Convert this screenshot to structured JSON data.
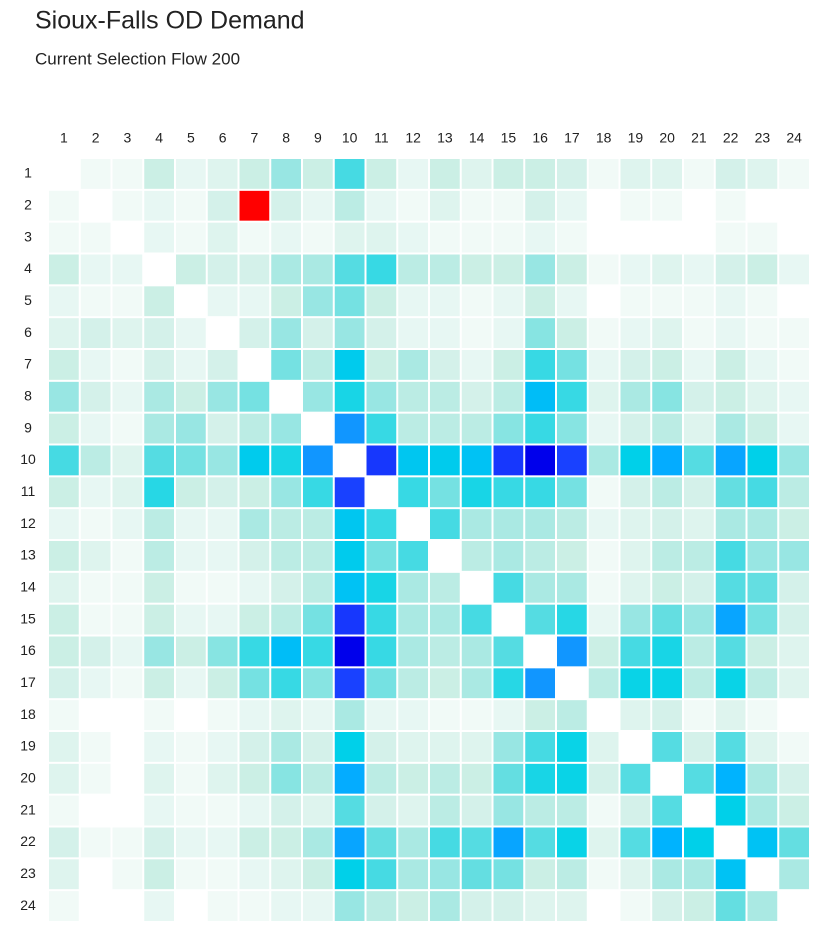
{
  "chart_data": {
    "type": "heatmap",
    "title": "Sioux-Falls OD Demand",
    "subtitle": "Current Selection Flow 200",
    "categories": [
      "1",
      "2",
      "3",
      "4",
      "5",
      "6",
      "7",
      "8",
      "9",
      "10",
      "11",
      "12",
      "13",
      "14",
      "15",
      "16",
      "17",
      "18",
      "19",
      "20",
      "21",
      "22",
      "23",
      "24"
    ],
    "selected_cell": {
      "row": "2",
      "column": "7"
    },
    "selected_color": "#ff0000",
    "values": [
      [
        0,
        100,
        100,
        500,
        200,
        300,
        500,
        800,
        500,
        1300,
        500,
        200,
        500,
        300,
        500,
        500,
        400,
        100,
        300,
        300,
        100,
        400,
        300,
        100
      ],
      [
        100,
        0,
        100,
        200,
        100,
        400,
        200,
        400,
        200,
        600,
        200,
        100,
        300,
        100,
        100,
        400,
        200,
        0,
        100,
        100,
        0,
        100,
        0,
        0
      ],
      [
        100,
        100,
        0,
        200,
        100,
        300,
        100,
        200,
        100,
        300,
        300,
        200,
        100,
        100,
        100,
        200,
        100,
        0,
        0,
        0,
        0,
        100,
        100,
        0
      ],
      [
        500,
        200,
        200,
        0,
        500,
        400,
        400,
        700,
        700,
        1200,
        1400,
        600,
        600,
        500,
        500,
        800,
        500,
        100,
        200,
        300,
        200,
        400,
        500,
        200
      ],
      [
        200,
        100,
        100,
        500,
        0,
        200,
        200,
        500,
        800,
        1000,
        500,
        200,
        200,
        100,
        200,
        500,
        200,
        0,
        100,
        100,
        100,
        200,
        100,
        0
      ],
      [
        300,
        400,
        300,
        400,
        200,
        0,
        400,
        800,
        400,
        800,
        400,
        200,
        200,
        100,
        200,
        900,
        500,
        100,
        200,
        300,
        100,
        200,
        100,
        100
      ],
      [
        500,
        200,
        100,
        400,
        200,
        400,
        0,
        1000,
        600,
        1900,
        500,
        700,
        400,
        200,
        500,
        1400,
        1000,
        200,
        400,
        500,
        200,
        500,
        200,
        100
      ],
      [
        800,
        400,
        200,
        700,
        500,
        800,
        1000,
        0,
        800,
        1600,
        800,
        600,
        600,
        400,
        600,
        2200,
        1400,
        300,
        700,
        900,
        400,
        500,
        300,
        200
      ],
      [
        500,
        200,
        100,
        700,
        800,
        400,
        600,
        800,
        0,
        2800,
        1400,
        600,
        600,
        600,
        900,
        1400,
        900,
        200,
        400,
        600,
        300,
        700,
        500,
        200
      ],
      [
        1300,
        600,
        300,
        1200,
        1000,
        800,
        1900,
        1600,
        2800,
        0,
        4000,
        2000,
        1900,
        2100,
        4000,
        4400,
        3900,
        700,
        1800,
        2500,
        1200,
        2600,
        1800,
        800
      ],
      [
        500,
        200,
        300,
        1500,
        500,
        400,
        500,
        800,
        1400,
        3900,
        0,
        1400,
        1000,
        1600,
        1400,
        1400,
        1000,
        100,
        400,
        600,
        400,
        1100,
        1300,
        600
      ],
      [
        200,
        100,
        200,
        600,
        200,
        200,
        700,
        600,
        600,
        2000,
        1400,
        0,
        1300,
        700,
        700,
        700,
        600,
        200,
        300,
        400,
        300,
        700,
        700,
        500
      ],
      [
        500,
        300,
        100,
        600,
        200,
        200,
        400,
        600,
        600,
        1900,
        1000,
        1300,
        0,
        600,
        700,
        600,
        500,
        100,
        300,
        600,
        600,
        1300,
        800,
        800
      ],
      [
        300,
        100,
        100,
        500,
        100,
        100,
        200,
        400,
        600,
        2100,
        1600,
        700,
        600,
        0,
        1300,
        700,
        700,
        100,
        300,
        500,
        400,
        1200,
        1100,
        400
      ],
      [
        500,
        100,
        100,
        500,
        200,
        200,
        500,
        600,
        1000,
        4000,
        1400,
        700,
        700,
        1300,
        0,
        1200,
        1500,
        200,
        800,
        1100,
        800,
        2600,
        1000,
        400
      ],
      [
        500,
        400,
        200,
        800,
        500,
        900,
        1400,
        2200,
        1400,
        4400,
        1400,
        700,
        600,
        700,
        1200,
        0,
        2800,
        500,
        1300,
        1600,
        600,
        1200,
        500,
        300
      ],
      [
        400,
        200,
        100,
        500,
        200,
        500,
        1000,
        1400,
        900,
        3900,
        1000,
        600,
        500,
        700,
        1500,
        2800,
        0,
        600,
        1700,
        1700,
        600,
        1700,
        600,
        300
      ],
      [
        100,
        0,
        0,
        100,
        0,
        100,
        200,
        300,
        200,
        700,
        200,
        200,
        100,
        100,
        200,
        500,
        600,
        0,
        300,
        400,
        100,
        300,
        100,
        0
      ],
      [
        300,
        100,
        0,
        200,
        100,
        200,
        400,
        700,
        400,
        1800,
        400,
        300,
        300,
        300,
        800,
        1300,
        1700,
        300,
        0,
        1200,
        400,
        1200,
        300,
        100
      ],
      [
        300,
        100,
        0,
        300,
        100,
        300,
        500,
        900,
        600,
        2500,
        600,
        500,
        600,
        500,
        1100,
        1600,
        1700,
        400,
        1200,
        0,
        1200,
        2400,
        700,
        400
      ],
      [
        100,
        0,
        0,
        200,
        100,
        100,
        200,
        400,
        300,
        1200,
        400,
        300,
        600,
        400,
        800,
        600,
        600,
        100,
        400,
        1200,
        0,
        1800,
        700,
        500
      ],
      [
        400,
        100,
        100,
        400,
        200,
        200,
        500,
        500,
        700,
        2600,
        1100,
        700,
        1300,
        1200,
        2600,
        1200,
        1700,
        300,
        1200,
        2400,
        1800,
        0,
        2100,
        1100
      ],
      [
        300,
        0,
        100,
        500,
        100,
        100,
        200,
        300,
        500,
        1800,
        1300,
        700,
        800,
        1100,
        1000,
        500,
        600,
        100,
        300,
        700,
        700,
        2100,
        0,
        700
      ],
      [
        100,
        0,
        0,
        200,
        0,
        100,
        100,
        200,
        200,
        800,
        600,
        500,
        700,
        400,
        400,
        300,
        300,
        0,
        100,
        400,
        500,
        1100,
        700,
        0
      ]
    ]
  }
}
